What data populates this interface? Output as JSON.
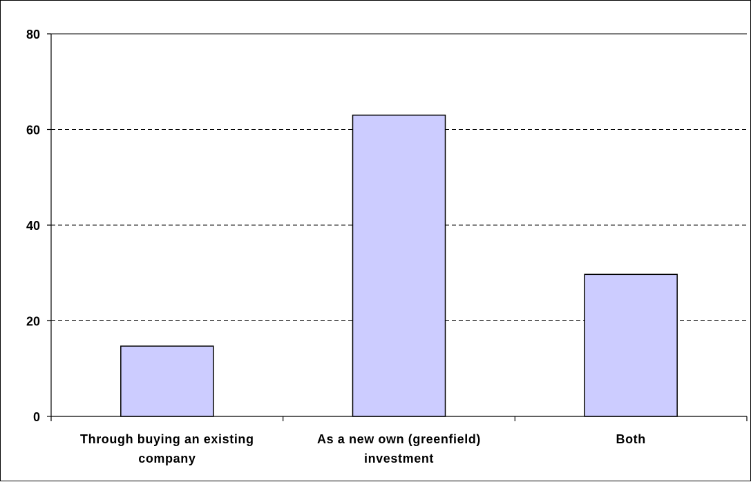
{
  "chart_data": {
    "type": "bar",
    "categories": [
      [
        "Through buying an existing",
        "company"
      ],
      [
        "As a new own (greenfield)",
        "investment"
      ],
      [
        "Both"
      ]
    ],
    "values": [
      14.7,
      63.0,
      29.7
    ],
    "title": "",
    "xlabel": "",
    "ylabel": "",
    "ylim": [
      0,
      80
    ],
    "yticks": [
      "0",
      "20",
      "40",
      "60",
      "80"
    ],
    "ytick_values": [
      0,
      20,
      40,
      60,
      80
    ],
    "grid": "horizontal-dashed",
    "legend": "none",
    "colors": {
      "bar_fill": "#ccccff",
      "bar_stroke": "#000000",
      "grid": "#000000",
      "axis": "#000000"
    }
  }
}
